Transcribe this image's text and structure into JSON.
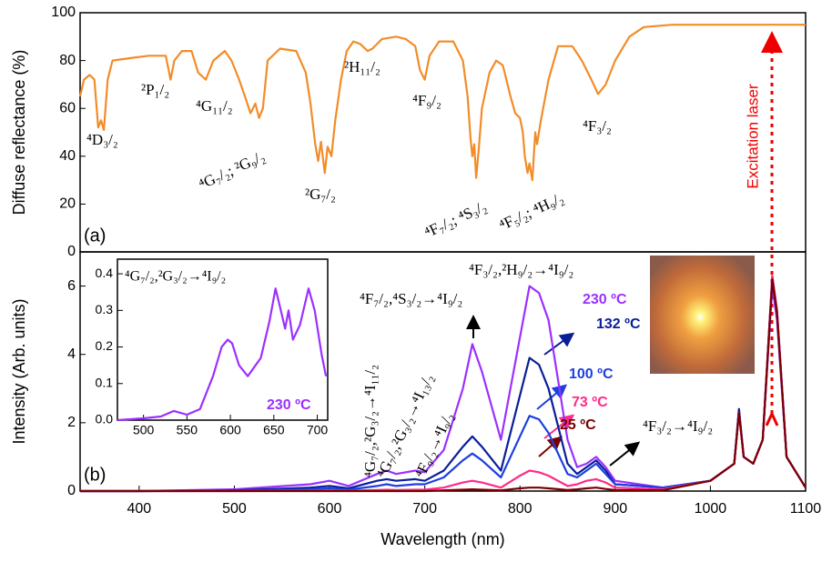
{
  "chart_data": [
    {
      "type": "line",
      "panel_label": "(a)",
      "y_label": "Diffuse reflectance (%)",
      "color": "#f28c28",
      "xlim": [
        338,
        1100
      ],
      "ylim": [
        0,
        100
      ],
      "yticks": [
        0,
        20,
        40,
        60,
        80,
        100
      ],
      "x": [
        338,
        342,
        348,
        353,
        357,
        360,
        363,
        367,
        372,
        390,
        410,
        428,
        433,
        437,
        445,
        455,
        462,
        470,
        478,
        490,
        497,
        505,
        512,
        517,
        522,
        526,
        530,
        535,
        548,
        565,
        575,
        580,
        585,
        588,
        591,
        595,
        598,
        602,
        606,
        612,
        618,
        625,
        632,
        640,
        645,
        655,
        670,
        680,
        690,
        695,
        700,
        705,
        715,
        730,
        740,
        745,
        748,
        750,
        752,
        754,
        757,
        760,
        768,
        775,
        782,
        790,
        795,
        800,
        803,
        805,
        808,
        810,
        813,
        816,
        818,
        822,
        830,
        840,
        855,
        865,
        875,
        882,
        890,
        900,
        915,
        930,
        960,
        1100
      ],
      "values": [
        65,
        72,
        74,
        72,
        52,
        55,
        51,
        72,
        80,
        81,
        82,
        82,
        72,
        80,
        84,
        84,
        75,
        72,
        80,
        84,
        80,
        72,
        64,
        58,
        62,
        56,
        60,
        80,
        85,
        84,
        75,
        62,
        45,
        38,
        46,
        33,
        44,
        40,
        55,
        72,
        84,
        88,
        87,
        84,
        85,
        89,
        90,
        89,
        86,
        76,
        72,
        82,
        88,
        88,
        80,
        65,
        48,
        40,
        45,
        31,
        44,
        60,
        75,
        80,
        78,
        65,
        58,
        56,
        50,
        40,
        33,
        37,
        30,
        50,
        45,
        55,
        72,
        86,
        86,
        80,
        72,
        66,
        70,
        80,
        90,
        94,
        95,
        95
      ],
      "annotations": [
        "⁴D₃/₂",
        "²P₁/₂",
        "⁴G₁₁/₂",
        "⁴G₇/₂; ²G₉/₂",
        "²H₁₁/₂",
        "²G₇/₂",
        "⁴F₉/₂",
        "⁴F₇/₂; ⁴S₃/₂",
        "⁴F₅/₂; ⁴H₉/₂",
        "⁴F₃/₂",
        "Excitation laser"
      ]
    },
    {
      "type": "line",
      "panel_label": "(b)",
      "y_label": "Intensity (Arb. units)",
      "x_label": "Wavelength (nm)",
      "xlim": [
        338,
        1100
      ],
      "xticks": [
        400,
        500,
        600,
        700,
        800,
        900,
        1000,
        1100
      ],
      "ylim": [
        0,
        7
      ],
      "yticks": [
        0,
        2,
        4,
        6
      ],
      "x": [
        338,
        400,
        500,
        580,
        600,
        620,
        650,
        660,
        670,
        690,
        700,
        720,
        740,
        750,
        760,
        780,
        800,
        810,
        820,
        830,
        850,
        860,
        870,
        880,
        890,
        900,
        950,
        1000,
        1025,
        1030,
        1035,
        1045,
        1055,
        1065,
        1070,
        1080,
        1100
      ],
      "series": [
        {
          "name": "230 ºC",
          "color": "#9b30ff",
          "values": [
            0,
            0,
            0.05,
            0.2,
            0.3,
            0.15,
            0.5,
            0.6,
            0.5,
            0.6,
            0.55,
            1.2,
            3.0,
            4.3,
            3.5,
            1.5,
            4.5,
            6.0,
            5.8,
            5.0,
            1.5,
            0.7,
            0.8,
            1.0,
            0.7,
            0.3,
            0.1,
            0.3,
            0.8,
            2.4,
            1.0,
            0.8,
            1.5,
            6.0,
            5.0,
            1.0,
            0.1
          ]
        },
        {
          "name": "132 ºC",
          "color": "#0a1e99",
          "values": [
            0,
            0,
            0.02,
            0.1,
            0.15,
            0.08,
            0.3,
            0.35,
            0.3,
            0.35,
            0.3,
            0.6,
            1.3,
            1.6,
            1.3,
            0.6,
            2.8,
            3.9,
            3.7,
            3.0,
            0.8,
            0.5,
            0.7,
            0.9,
            0.6,
            0.2,
            0.1,
            0.3,
            0.8,
            2.4,
            1.0,
            0.8,
            1.5,
            6.2,
            5.2,
            1.0,
            0.1
          ]
        },
        {
          "name": "100 ºC",
          "color": "#1c3fe0",
          "values": [
            0,
            0,
            0.01,
            0.05,
            0.08,
            0.04,
            0.15,
            0.2,
            0.15,
            0.2,
            0.2,
            0.4,
            0.9,
            1.1,
            0.9,
            0.4,
            1.6,
            2.2,
            2.1,
            1.7,
            0.5,
            0.4,
            0.6,
            0.8,
            0.5,
            0.2,
            0.1,
            0.3,
            0.8,
            2.3,
            1.0,
            0.8,
            1.5,
            6.3,
            5.3,
            1.0,
            0.1
          ]
        },
        {
          "name": "73 ºC",
          "color": "#ff2a8a",
          "values": [
            0,
            0,
            0,
            0.01,
            0.02,
            0.01,
            0.03,
            0.04,
            0.03,
            0.04,
            0.04,
            0.1,
            0.25,
            0.3,
            0.25,
            0.1,
            0.45,
            0.6,
            0.55,
            0.45,
            0.15,
            0.2,
            0.3,
            0.35,
            0.25,
            0.1,
            0.05,
            0.3,
            0.8,
            2.3,
            1.0,
            0.8,
            1.5,
            6.3,
            5.3,
            1.0,
            0.1
          ]
        },
        {
          "name": "25 ºC",
          "color": "#7a0000",
          "values": [
            0,
            0,
            0,
            0,
            0,
            0,
            0,
            0,
            0,
            0,
            0,
            0.02,
            0.04,
            0.05,
            0.04,
            0.02,
            0.08,
            0.1,
            0.1,
            0.08,
            0.03,
            0.05,
            0.08,
            0.1,
            0.06,
            0.03,
            0.02,
            0.3,
            0.8,
            2.3,
            1.0,
            0.8,
            1.5,
            6.2,
            5.2,
            1.0,
            0.1
          ]
        }
      ],
      "annotations": [
        "⁴G₇/₂,²G₃/₂→⁴I₁₁/₂",
        "⁴G₇/₂,²G₃/₂→⁴I₁₃/₂",
        "⁴F₉/₂→⁴I₉/₂",
        "⁴F₇/₂,⁴S₃/₂→⁴I₉/₂",
        "⁴F₃/₂,²H₉/₂→⁴I₉/₂",
        "⁴F₃/₂→⁴I₉/₂"
      ]
    },
    {
      "type": "line",
      "series_name": "230 ºC",
      "color": "#9b30ff",
      "xlim": [
        470,
        712
      ],
      "xticks": [
        500,
        550,
        600,
        650,
        700
      ],
      "ylim": [
        0,
        0.44
      ],
      "yticks": [
        {
          "value": 0,
          "label": "0.0"
        },
        0.1,
        0.2,
        0.3,
        0.4
      ],
      "x": [
        470,
        500,
        520,
        535,
        550,
        565,
        580,
        590,
        597,
        602,
        610,
        620,
        635,
        645,
        652,
        658,
        663,
        667,
        672,
        680,
        690,
        697,
        705,
        710
      ],
      "values": [
        0.0,
        0.005,
        0.01,
        0.025,
        0.015,
        0.03,
        0.12,
        0.2,
        0.22,
        0.21,
        0.15,
        0.12,
        0.17,
        0.27,
        0.36,
        0.3,
        0.25,
        0.3,
        0.22,
        0.26,
        0.36,
        0.3,
        0.18,
        0.12
      ],
      "annotations": [
        "⁴G₇/₂,²G₃/₂→⁴I₉/₂"
      ]
    }
  ]
}
